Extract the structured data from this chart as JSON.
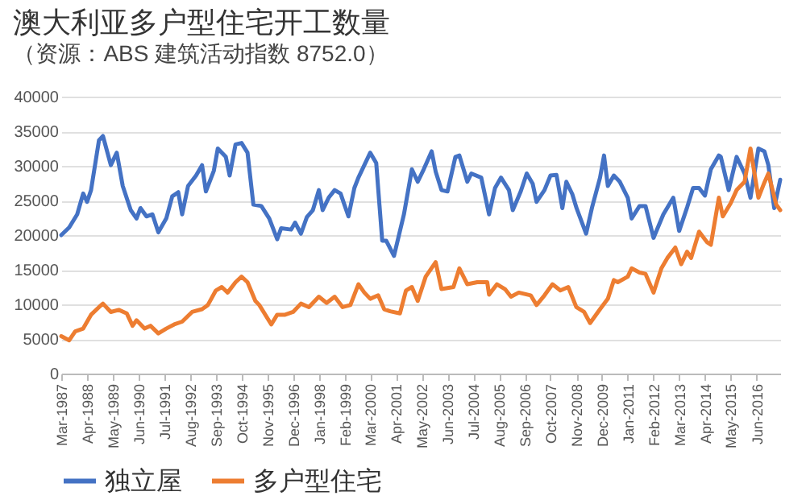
{
  "chart_data": {
    "type": "line",
    "title": "澳大利亚多户型住宅开工数量",
    "subtitle": "（资源：ABS 建筑活动指数 8752.0）",
    "xlim": [
      "1987-03",
      "2017-06"
    ],
    "xticks": [
      {
        "value": "1987-03",
        "label": "Mar-1987"
      },
      {
        "value": "1988-04",
        "label": "Apr-1988"
      },
      {
        "value": "1989-05",
        "label": "May-1989"
      },
      {
        "value": "1990-06",
        "label": "Jun-1990"
      },
      {
        "value": "1991-07",
        "label": "Jul-1991"
      },
      {
        "value": "1992-08",
        "label": "Aug-1992"
      },
      {
        "value": "1993-09",
        "label": "Sep-1993"
      },
      {
        "value": "1994-10",
        "label": "Oct-1994"
      },
      {
        "value": "1995-11",
        "label": "Nov-1995"
      },
      {
        "value": "1996-12",
        "label": "Dec-1996"
      },
      {
        "value": "1998-01",
        "label": "Jan-1998"
      },
      {
        "value": "1999-02",
        "label": "Feb-1999"
      },
      {
        "value": "2000-03",
        "label": "Mar-2000"
      },
      {
        "value": "2001-04",
        "label": "Apr-2001"
      },
      {
        "value": "2002-05",
        "label": "May-2002"
      },
      {
        "value": "2003-06",
        "label": "Jun-2003"
      },
      {
        "value": "2004-07",
        "label": "Jul-2004"
      },
      {
        "value": "2005-08",
        "label": "Aug-2005"
      },
      {
        "value": "2006-09",
        "label": "Sep-2006"
      },
      {
        "value": "2007-10",
        "label": "Oct-2007"
      },
      {
        "value": "2008-11",
        "label": "Nov-2008"
      },
      {
        "value": "2009-12",
        "label": "Dec-2009"
      },
      {
        "value": "2011-01",
        "label": "Jan-2011"
      },
      {
        "value": "2012-02",
        "label": "Feb-2012"
      },
      {
        "value": "2013-03",
        "label": "Mar-2013"
      },
      {
        "value": "2014-04",
        "label": "Apr-2014"
      },
      {
        "value": "2015-05",
        "label": "May-2015"
      },
      {
        "value": "2016-06",
        "label": "Jun-2016"
      }
    ],
    "ylim": [
      0,
      40000
    ],
    "yticks": [
      0,
      5000,
      10000,
      15000,
      20000,
      25000,
      30000,
      35000,
      40000
    ],
    "grid": "y",
    "legend": "bottom",
    "marker": "none",
    "line_style": "solid",
    "series": [
      {
        "name": "独立屋",
        "color": "#4472c4",
        "x": [
          "1987-03",
          "1987-07",
          "1987-11",
          "1988-02",
          "1988-04",
          "1988-06",
          "1988-10",
          "1988-12",
          "1989-04",
          "1989-07",
          "1989-10",
          "1990-02",
          "1990-05",
          "1990-07",
          "1990-10",
          "1991-01",
          "1991-04",
          "1991-08",
          "1991-11",
          "1992-02",
          "1992-04",
          "1992-07",
          "1992-11",
          "1993-02",
          "1993-04",
          "1993-08",
          "1993-10",
          "1994-02",
          "1994-04",
          "1994-07",
          "1994-10",
          "1995-01",
          "1995-04",
          "1995-08",
          "1995-12",
          "1996-04",
          "1996-06",
          "1996-11",
          "1997-01",
          "1997-04",
          "1997-07",
          "1997-10",
          "1998-01",
          "1998-03",
          "1998-06",
          "1998-09",
          "1998-12",
          "1999-04",
          "1999-07",
          "1999-09",
          "1999-12",
          "2000-03",
          "2000-06",
          "2000-09",
          "2000-11",
          "2001-03",
          "2001-08",
          "2001-12",
          "2002-03",
          "2002-06",
          "2002-10",
          "2002-12",
          "2003-03",
          "2003-06",
          "2003-10",
          "2003-12",
          "2004-04",
          "2004-06",
          "2004-11",
          "2005-03",
          "2005-06",
          "2005-09",
          "2006-01",
          "2006-03",
          "2006-07",
          "2006-10",
          "2007-01",
          "2007-03",
          "2007-07",
          "2007-10",
          "2008-01",
          "2008-04",
          "2008-06",
          "2008-09",
          "2008-11",
          "2009-04",
          "2009-07",
          "2009-11",
          "2010-01",
          "2010-03",
          "2010-06",
          "2010-09",
          "2011-01",
          "2011-03",
          "2011-07",
          "2011-10",
          "2012-02",
          "2012-07",
          "2012-12",
          "2013-03",
          "2013-07",
          "2013-10",
          "2014-01",
          "2014-04",
          "2014-07",
          "2014-11",
          "2014-12",
          "2015-04",
          "2015-08",
          "2015-12",
          "2016-03",
          "2016-07",
          "2016-10",
          "2016-12",
          "2017-03",
          "2017-06"
        ],
        "values": [
          20000,
          21100,
          23000,
          26000,
          24800,
          26500,
          33700,
          34300,
          30100,
          31900,
          27100,
          23600,
          22400,
          23900,
          22700,
          23000,
          20400,
          22400,
          25600,
          26200,
          23000,
          27100,
          28600,
          30100,
          26300,
          29300,
          32500,
          31300,
          28600,
          33100,
          33300,
          31900,
          24400,
          24200,
          22400,
          19400,
          21000,
          20800,
          21800,
          20200,
          22600,
          23600,
          26500,
          23600,
          25400,
          26500,
          26000,
          22700,
          26800,
          28300,
          30100,
          31900,
          30400,
          19200,
          19200,
          17000,
          23000,
          29500,
          27700,
          29500,
          32100,
          29200,
          26500,
          26300,
          31300,
          31500,
          27700,
          28900,
          28300,
          23000,
          26800,
          28300,
          26500,
          23600,
          26300,
          28900,
          27400,
          24800,
          26500,
          28600,
          28700,
          23900,
          27700,
          25900,
          24000,
          20200,
          24000,
          28300,
          31500,
          27100,
          28600,
          27700,
          25400,
          22400,
          24200,
          24200,
          19600,
          23000,
          25400,
          20600,
          24000,
          26800,
          26800,
          25700,
          29500,
          31500,
          31300,
          26500,
          31300,
          28900,
          25400,
          32500,
          32100,
          30100,
          23900,
          28000
        ]
      },
      {
        "name": "多户型住宅",
        "color": "#ed7d31",
        "x": [
          "1987-03",
          "1987-07",
          "1987-10",
          "1988-02",
          "1988-06",
          "1988-10",
          "1988-12",
          "1989-04",
          "1989-08",
          "1989-12",
          "1990-03",
          "1990-05",
          "1990-09",
          "1990-12",
          "1991-04",
          "1991-08",
          "1991-12",
          "1992-04",
          "1992-09",
          "1993-02",
          "1993-05",
          "1993-09",
          "1993-12",
          "1994-03",
          "1994-07",
          "1994-10",
          "1995-01",
          "1995-05",
          "1995-07",
          "1996-01",
          "1996-04",
          "1996-08",
          "1996-12",
          "1997-04",
          "1997-08",
          "1998-01",
          "1998-05",
          "1998-09",
          "1999-01",
          "1999-05",
          "1999-09",
          "1999-12",
          "2000-03",
          "2000-07",
          "2000-10",
          "2001-01",
          "2001-06",
          "2001-09",
          "2001-12",
          "2002-03",
          "2002-07",
          "2002-12",
          "2003-03",
          "2003-09",
          "2003-12",
          "2004-04",
          "2004-09",
          "2005-02",
          "2005-03",
          "2005-07",
          "2005-11",
          "2006-02",
          "2006-06",
          "2006-12",
          "2007-03",
          "2007-07",
          "2007-11",
          "2008-03",
          "2008-07",
          "2008-11",
          "2009-03",
          "2009-06",
          "2009-11",
          "2010-03",
          "2010-06",
          "2010-08",
          "2011-01",
          "2011-03",
          "2011-07",
          "2011-10",
          "2012-02",
          "2012-06",
          "2012-09",
          "2013-01",
          "2013-04",
          "2013-07",
          "2013-09",
          "2014-01",
          "2014-05",
          "2014-07",
          "2014-11",
          "2015-01",
          "2015-05",
          "2015-08",
          "2015-12",
          "2016-03",
          "2016-07",
          "2016-10",
          "2016-12",
          "2017-04",
          "2017-06"
        ],
        "values": [
          5400,
          4800,
          6100,
          6500,
          8500,
          9600,
          10100,
          8900,
          9200,
          8700,
          6900,
          7700,
          6500,
          6900,
          5800,
          6500,
          7100,
          7500,
          8900,
          9300,
          9900,
          12000,
          12500,
          11700,
          13200,
          14000,
          13200,
          10500,
          9900,
          7100,
          8500,
          8500,
          8900,
          10100,
          9600,
          11100,
          10200,
          11100,
          9600,
          9900,
          12900,
          11700,
          10800,
          11300,
          9300,
          9000,
          8700,
          12000,
          12500,
          10500,
          14000,
          16100,
          12200,
          12500,
          15200,
          12900,
          13200,
          13200,
          11400,
          12900,
          12200,
          11100,
          11700,
          11300,
          9900,
          11300,
          12900,
          12000,
          12500,
          9600,
          8900,
          7300,
          9300,
          10800,
          13500,
          13200,
          14000,
          15200,
          14600,
          14400,
          11700,
          15200,
          16700,
          18200,
          15800,
          17600,
          16700,
          20500,
          19000,
          18600,
          25400,
          22700,
          24600,
          26500,
          27700,
          32500,
          25400,
          27600,
          28900,
          24400,
          23600
        ]
      }
    ]
  }
}
